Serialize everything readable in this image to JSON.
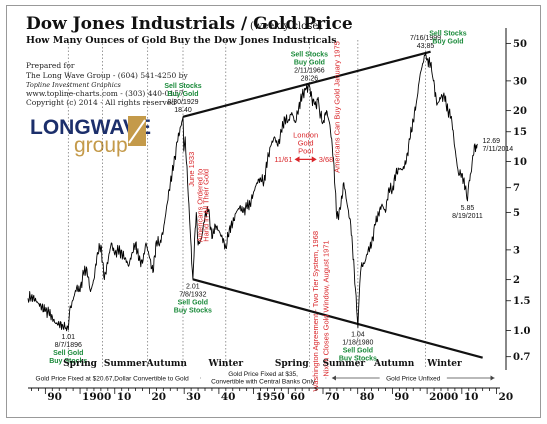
{
  "title": "Dow Jones Industrials / Gold Price",
  "title_note": "(weekly close)",
  "subtitle": "How Many Ounces of Gold Buy the Dow Jones Industricals",
  "prepared": {
    "line1": "Prepared for",
    "line2": "The Long Wave Group - (604) 541-4250 by",
    "line3": "Topline Investment Graphics",
    "line4": "www.topline-charts.com - (303) 440-0157",
    "line5": "Copyright (c) 2014 - All rights reserved"
  },
  "logo": {
    "word1": "LONGWAVE",
    "word2": "group"
  },
  "colors": {
    "line": "#000000",
    "green": "#1a8a3a",
    "red": "#d9262a",
    "logo_blue": "#1c2f6b",
    "logo_gold": "#c49a4a"
  },
  "chart_data": {
    "type": "line",
    "y_scale": "log",
    "ylim": [
      0.6,
      60
    ],
    "xlim": [
      1885,
      2021
    ],
    "y_ticks": [
      {
        "v": 50,
        "label": "50"
      },
      {
        "v": 30,
        "label": "30"
      },
      {
        "v": 20,
        "label": "20"
      },
      {
        "v": 15,
        "label": "15"
      },
      {
        "v": 10,
        "label": "10"
      },
      {
        "v": 7,
        "label": "7"
      },
      {
        "v": 5,
        "label": "5"
      },
      {
        "v": 3,
        "label": "3"
      },
      {
        "v": 2,
        "label": "2"
      },
      {
        "v": 1.5,
        "label": "1.5"
      },
      {
        "v": 1.0,
        "label": "1.0"
      },
      {
        "v": 0.7,
        "label": "0.7"
      }
    ],
    "x_ticks": [
      {
        "v": 1890,
        "label": "90"
      },
      {
        "v": 1900,
        "label": "1900"
      },
      {
        "v": 1910,
        "label": "10"
      },
      {
        "v": 1920,
        "label": "20"
      },
      {
        "v": 1930,
        "label": "30"
      },
      {
        "v": 1940,
        "label": "40"
      },
      {
        "v": 1950,
        "label": "1950"
      },
      {
        "v": 1960,
        "label": "60"
      },
      {
        "v": 1970,
        "label": "70"
      },
      {
        "v": 1980,
        "label": "80"
      },
      {
        "v": 1990,
        "label": "90"
      },
      {
        "v": 2000,
        "label": "2000"
      },
      {
        "v": 2010,
        "label": "10"
      },
      {
        "v": 2020,
        "label": "20"
      }
    ],
    "series": [
      {
        "points": [
          [
            1885,
            1.55
          ],
          [
            1886,
            1.6
          ],
          [
            1888,
            1.45
          ],
          [
            1890,
            1.3
          ],
          [
            1891,
            1.28
          ],
          [
            1893,
            1.1
          ],
          [
            1895,
            1.08
          ],
          [
            1896.6,
            1.01
          ],
          [
            1897,
            1.3
          ],
          [
            1899,
            1.8
          ],
          [
            1900,
            1.7
          ],
          [
            1901,
            2.2
          ],
          [
            1902,
            2.3
          ],
          [
            1903,
            1.7
          ],
          [
            1904,
            2.0
          ],
          [
            1905,
            2.9
          ],
          [
            1906,
            3.2
          ],
          [
            1907,
            2.0
          ],
          [
            1909,
            3.3
          ],
          [
            1910,
            2.8
          ],
          [
            1911,
            3.0
          ],
          [
            1913,
            2.7
          ],
          [
            1914,
            2.4
          ],
          [
            1915,
            2.9
          ],
          [
            1916,
            3.3
          ],
          [
            1917,
            2.6
          ],
          [
            1918,
            2.5
          ],
          [
            1919,
            3.3
          ],
          [
            1920,
            2.7
          ],
          [
            1921,
            2.2
          ],
          [
            1922,
            3.4
          ],
          [
            1923,
            3.3
          ],
          [
            1924,
            3.9
          ],
          [
            1925,
            5.5
          ],
          [
            1926,
            7.5
          ],
          [
            1927,
            9.5
          ],
          [
            1928,
            13.0
          ],
          [
            1929.66,
            18.4
          ],
          [
            1929.9,
            11.5
          ],
          [
            1930.3,
            14.0
          ],
          [
            1931,
            7.5
          ],
          [
            1931.7,
            4.0
          ],
          [
            1932.5,
            2.01
          ],
          [
            1933,
            3.5
          ],
          [
            1933.5,
            5.0
          ],
          [
            1934,
            3.2
          ],
          [
            1935,
            3.5
          ],
          [
            1936,
            4.8
          ],
          [
            1937,
            5.2
          ],
          [
            1938,
            3.5
          ],
          [
            1939,
            4.2
          ],
          [
            1940,
            3.9
          ],
          [
            1941,
            3.5
          ],
          [
            1942,
            3.1
          ],
          [
            1943,
            4.0
          ],
          [
            1944,
            4.3
          ],
          [
            1945,
            5.0
          ],
          [
            1946,
            5.4
          ],
          [
            1947,
            5.0
          ],
          [
            1948,
            5.4
          ],
          [
            1949,
            5.6
          ],
          [
            1950,
            6.6
          ],
          [
            1951,
            7.5
          ],
          [
            1952,
            8.0
          ],
          [
            1953,
            7.6
          ],
          [
            1954,
            10.2
          ],
          [
            1955,
            12.4
          ],
          [
            1956,
            14.0
          ],
          [
            1957,
            12.3
          ],
          [
            1958,
            15.0
          ],
          [
            1959,
            18.0
          ],
          [
            1960,
            17.5
          ],
          [
            1961,
            19.5
          ],
          [
            1962,
            17.0
          ],
          [
            1963,
            21.0
          ],
          [
            1964,
            24.5
          ],
          [
            1965,
            26.5
          ],
          [
            1966.08,
            28.26
          ],
          [
            1966.8,
            23.5
          ],
          [
            1967.5,
            22.0
          ],
          [
            1968,
            21.0
          ],
          [
            1968.6,
            24.0
          ],
          [
            1969,
            20.0
          ],
          [
            1970,
            17.0
          ],
          [
            1971,
            20.0
          ],
          [
            1972,
            16.5
          ],
          [
            1973,
            10.5
          ],
          [
            1974,
            4.6
          ],
          [
            1975,
            5.2
          ],
          [
            1976,
            7.5
          ],
          [
            1977,
            5.5
          ],
          [
            1978,
            4.2
          ],
          [
            1979,
            2.3
          ],
          [
            1980.05,
            1.04
          ],
          [
            1980.6,
            1.9
          ],
          [
            1981,
            2.4
          ],
          [
            1982,
            2.5
          ],
          [
            1983,
            3.0
          ],
          [
            1984,
            3.2
          ],
          [
            1985,
            4.2
          ],
          [
            1986,
            4.9
          ],
          [
            1987,
            5.6
          ],
          [
            1988,
            5.0
          ],
          [
            1989,
            7.0
          ],
          [
            1990,
            6.8
          ],
          [
            1991,
            8.5
          ],
          [
            1992,
            9.0
          ],
          [
            1993,
            9.0
          ],
          [
            1994,
            10.0
          ],
          [
            1995,
            13.5
          ],
          [
            1996,
            17.5
          ],
          [
            1997,
            23.0
          ],
          [
            1998,
            33.0
          ],
          [
            1999.54,
            43.85
          ],
          [
            2000,
            40.0
          ],
          [
            2001,
            38.0
          ],
          [
            2001.8,
            30.0
          ],
          [
            2002.6,
            24.0
          ],
          [
            2003,
            22.0
          ],
          [
            2004,
            24.0
          ],
          [
            2005,
            24.0
          ],
          [
            2006,
            20.0
          ],
          [
            2007,
            18.5
          ],
          [
            2008,
            12.0
          ],
          [
            2009,
            8.5
          ],
          [
            2010,
            8.5
          ],
          [
            2011,
            7.0
          ],
          [
            2011.63,
            5.85
          ],
          [
            2012,
            7.5
          ],
          [
            2012.6,
            8.5
          ],
          [
            2013,
            10.0
          ],
          [
            2013.6,
            12.5
          ],
          [
            2014.3,
            12.0
          ],
          [
            2014.53,
            12.69
          ]
        ]
      }
    ],
    "trendlines": [
      {
        "from": [
          1929.66,
          18.4
        ],
        "to": [
          1999.54,
          43.85
        ],
        "extend_to": 2001
      },
      {
        "from": [
          1932.5,
          2.01
        ],
        "to": [
          2016,
          0.69
        ]
      }
    ],
    "dotted_verticals": [
      1896.6,
      1906.5,
      1919.5,
      1929.66,
      1942,
      1966.08,
      1980.05,
      1999.54
    ],
    "seasons": [
      {
        "label": "Spring",
        "x": 1900
      },
      {
        "label": "Summer",
        "x": 1913
      },
      {
        "label": "Autumn",
        "x": 1925
      },
      {
        "label": "Winter",
        "x": 1942
      },
      {
        "label": "Spring",
        "x": 1961
      },
      {
        "label": "Summer",
        "x": 1976
      },
      {
        "label": "Autumn",
        "x": 1990.5
      },
      {
        "label": "Winter",
        "x": 2005
      }
    ],
    "bottom_bands": [
      {
        "label": "Gold Price Fixed at $20.67,Dollar Convertible to Gold",
        "label2": "",
        "from": 1885,
        "to": 1933.5
      },
      {
        "label": "Gold Price Fixed at $35,",
        "label2": "Convertible with Central Banks Only",
        "from": 1934,
        "to": 1971.5
      },
      {
        "label": "Gold Price Unfixed",
        "label2": "",
        "from": 1972,
        "to": 2020
      }
    ],
    "annotations": [
      {
        "lines": [
          "1.01",
          "8/7/1896"
        ],
        "green": [
          "Sell Gold",
          "Buy Stocks"
        ],
        "x": 1896.6,
        "y": 1.01,
        "pos": "below"
      },
      {
        "lines": [
          "8/30/1929",
          "18.40"
        ],
        "green": [
          "Sell Stocks",
          "Buy Gold"
        ],
        "x": 1929.66,
        "y": 18.4,
        "pos": "above"
      },
      {
        "lines": [
          "2.01",
          "7/8/1932"
        ],
        "green": [
          "Sell Gold",
          "Buy Stocks"
        ],
        "x": 1932.5,
        "y": 2.01,
        "pos": "below"
      },
      {
        "lines": [
          "2/11/1966",
          "28.26"
        ],
        "green": [
          "Sell Stocks",
          "Buy Gold"
        ],
        "x": 1966.08,
        "y": 28.26,
        "pos": "above"
      },
      {
        "lines": [
          "1.04",
          "1/18/1980"
        ],
        "green": [
          "Sell Gold",
          "Buy Stocks"
        ],
        "x": 1980.05,
        "y": 1.04,
        "pos": "below"
      },
      {
        "lines": [
          "7/16/1999",
          "43.85"
        ],
        "green": [],
        "x": 1999.54,
        "y": 43.85,
        "pos": "above"
      },
      {
        "lines": [
          "5.85",
          "8/19/2011"
        ],
        "green": [],
        "x": 2011.63,
        "y": 5.85,
        "pos": "below"
      },
      {
        "lines": [
          "12.69",
          "7/11/2014"
        ],
        "green": [],
        "x": 2014.53,
        "y": 12.69,
        "pos": "right"
      }
    ],
    "green_side_label": {
      "lines": [
        "Sell Stocks",
        "Buy Gold"
      ],
      "x": 2006,
      "y": 50
    },
    "red_vertical_notes": [
      {
        "text": "June 1933",
        "x": 1932.8,
        "y": 9.0
      },
      {
        "text": "Americans Ordered to",
        "x": 1935.3,
        "y": 5.5
      },
      {
        "text": "Hand in All Their Gold",
        "x": 1937.0,
        "y": 5.5
      },
      {
        "text": "Washington Agreement - Two Tier System, 1968",
        "x": 1968.6,
        "y": 1.3
      },
      {
        "text": "Nixon Closes Gold Window, August 1971",
        "x": 1971.6,
        "y": 1.35
      },
      {
        "text": "Americans Can Buy Gold January 1975",
        "x": 1974.8,
        "y": 21.0
      }
    ],
    "london_pool": {
      "lines": [
        "London",
        "Gold",
        "Pool"
      ],
      "from_label": "11/61",
      "to_label": "3/68",
      "from": 1961.8,
      "to": 1968.2,
      "y": 10.3
    }
  }
}
